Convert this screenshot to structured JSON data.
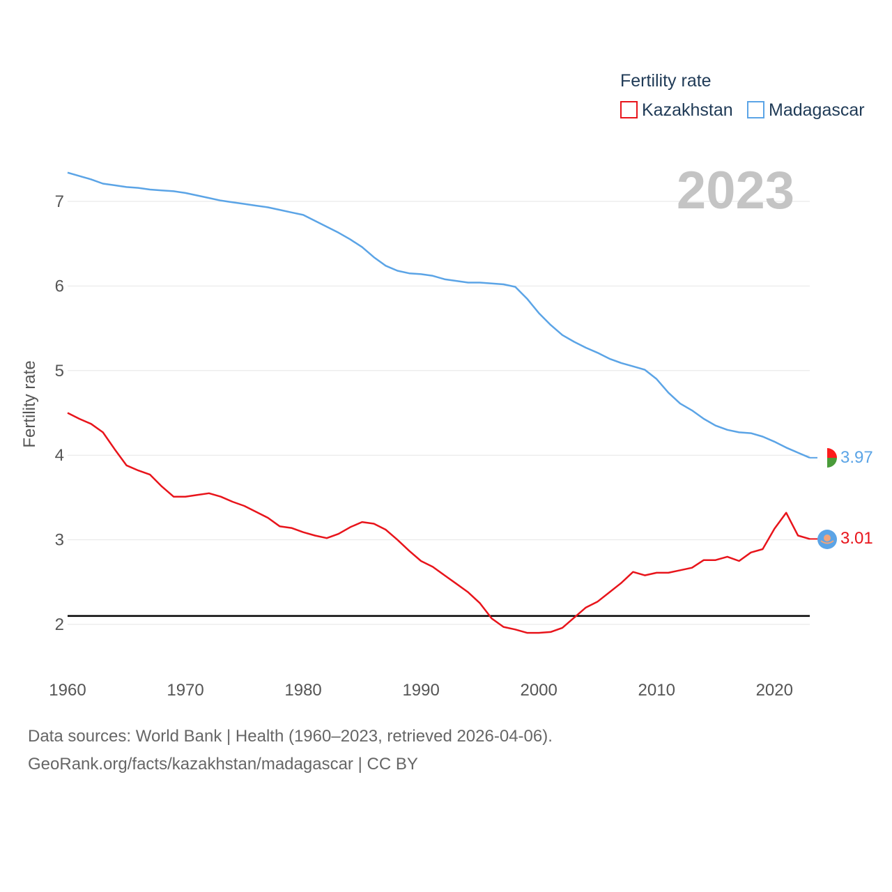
{
  "chart_data": {
    "type": "line",
    "ylabel": "Fertility rate",
    "xlim": [
      1960,
      2023
    ],
    "ylim": [
      1.5,
      7.6
    ],
    "xticks": [
      1960,
      1970,
      1980,
      1990,
      2000,
      2010,
      2020
    ],
    "yticks": [
      2,
      3,
      4,
      5,
      6,
      7
    ],
    "year_label": "2023",
    "reference_line": 2.1,
    "legend": {
      "title": "Fertility rate",
      "position": "top-right"
    },
    "x": [
      1960,
      1961,
      1962,
      1963,
      1964,
      1965,
      1966,
      1967,
      1968,
      1969,
      1970,
      1971,
      1972,
      1973,
      1974,
      1975,
      1976,
      1977,
      1978,
      1979,
      1980,
      1981,
      1982,
      1983,
      1984,
      1985,
      1986,
      1987,
      1988,
      1989,
      1990,
      1991,
      1992,
      1993,
      1994,
      1995,
      1996,
      1997,
      1998,
      1999,
      2000,
      2001,
      2002,
      2003,
      2004,
      2005,
      2006,
      2007,
      2008,
      2009,
      2010,
      2011,
      2012,
      2013,
      2014,
      2015,
      2016,
      2017,
      2018,
      2019,
      2020,
      2021,
      2022,
      2023
    ],
    "series": [
      {
        "name": "Kazakhstan",
        "color": "#e8141b",
        "end_label": "3.01",
        "values": [
          4.5,
          4.43,
          4.37,
          4.27,
          4.07,
          3.88,
          3.82,
          3.77,
          3.63,
          3.51,
          3.51,
          3.53,
          3.55,
          3.51,
          3.45,
          3.4,
          3.33,
          3.26,
          3.16,
          3.14,
          3.09,
          3.05,
          3.02,
          3.07,
          3.15,
          3.21,
          3.19,
          3.12,
          3.0,
          2.87,
          2.75,
          2.68,
          2.58,
          2.48,
          2.38,
          2.25,
          2.07,
          1.97,
          1.94,
          1.9,
          1.9,
          1.91,
          1.96,
          2.08,
          2.2,
          2.27,
          2.38,
          2.49,
          2.62,
          2.58,
          2.61,
          2.61,
          2.64,
          2.67,
          2.76,
          2.76,
          2.8,
          2.75,
          2.85,
          2.89,
          3.13,
          3.32,
          3.05,
          3.01
        ]
      },
      {
        "name": "Madagascar",
        "color": "#5ba4e6",
        "end_label": "3.97",
        "values": [
          7.34,
          7.3,
          7.26,
          7.21,
          7.19,
          7.17,
          7.16,
          7.14,
          7.13,
          7.12,
          7.1,
          7.07,
          7.04,
          7.01,
          6.99,
          6.97,
          6.95,
          6.93,
          6.9,
          6.87,
          6.84,
          6.77,
          6.7,
          6.63,
          6.55,
          6.46,
          6.34,
          6.24,
          6.18,
          6.15,
          6.14,
          6.12,
          6.08,
          6.06,
          6.04,
          6.04,
          6.03,
          6.02,
          5.99,
          5.85,
          5.68,
          5.54,
          5.42,
          5.34,
          5.27,
          5.21,
          5.14,
          5.09,
          5.05,
          5.01,
          4.9,
          4.74,
          4.61,
          4.53,
          4.43,
          4.35,
          4.3,
          4.27,
          4.26,
          4.22,
          4.16,
          4.09,
          4.03,
          3.97
        ]
      }
    ]
  },
  "footer": {
    "source_line": "Data sources: World Bank | Health (1960–2023, retrieved 2026-04-06).",
    "credit_line": "GeoRank.org/facts/kazakhstan/madagascar | CC BY"
  }
}
